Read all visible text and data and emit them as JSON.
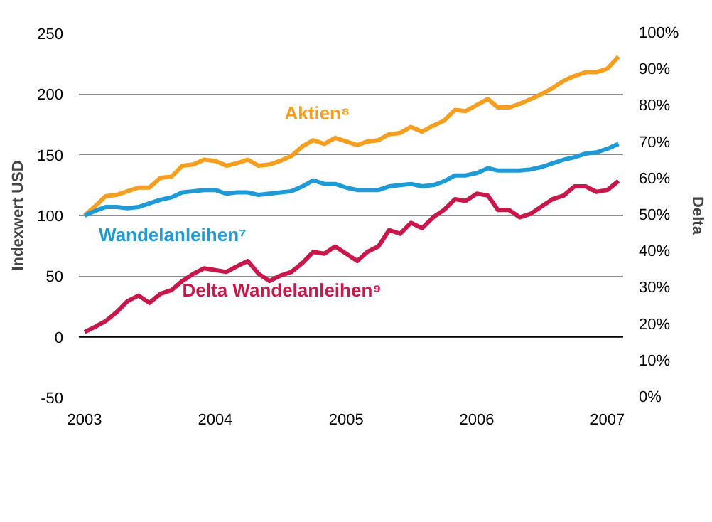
{
  "chart_data": {
    "type": "line",
    "ylabel": "Indexwert USD",
    "y2label": "Delta",
    "x": [
      "2003-01",
      "2003-02",
      "2003-03",
      "2003-04",
      "2003-05",
      "2003-06",
      "2003-07",
      "2003-08",
      "2003-09",
      "2003-10",
      "2003-11",
      "2003-12",
      "2004-01",
      "2004-02",
      "2004-03",
      "2004-04",
      "2004-05",
      "2004-06",
      "2004-07",
      "2004-08",
      "2004-09",
      "2004-10",
      "2004-11",
      "2004-12",
      "2005-01",
      "2005-02",
      "2005-03",
      "2005-04",
      "2005-05",
      "2005-06",
      "2005-07",
      "2005-08",
      "2005-09",
      "2005-10",
      "2005-11",
      "2005-12",
      "2006-01",
      "2006-02",
      "2006-03",
      "2006-04",
      "2006-05",
      "2006-06",
      "2006-07",
      "2006-08",
      "2006-09",
      "2006-10",
      "2006-11",
      "2006-12",
      "2007-01",
      "2007-02"
    ],
    "series": [
      {
        "name": "Aktien⁸",
        "color": "#f59e1f",
        "values": [
          100,
          108,
          116,
          117,
          120,
          123,
          123,
          131,
          132,
          141,
          142,
          146,
          145,
          141,
          143,
          146,
          141,
          142,
          145,
          149,
          157,
          162,
          159,
          164,
          161,
          158,
          161,
          162,
          167,
          168,
          173,
          169,
          174,
          178,
          187,
          186,
          191,
          196,
          189,
          189,
          192,
          196,
          200,
          205,
          211,
          215,
          218,
          218,
          221,
          231
        ]
      },
      {
        "name": "Wandelanleihen⁷",
        "color": "#1e9bd7",
        "values": [
          100,
          104,
          107,
          107,
          106,
          107,
          110,
          113,
          115,
          119,
          120,
          121,
          121,
          118,
          119,
          119,
          117,
          118,
          119,
          120,
          124,
          129,
          126,
          126,
          123,
          121,
          121,
          121,
          124,
          125,
          126,
          124,
          125,
          128,
          133,
          133,
          135,
          139,
          137,
          137,
          137,
          138,
          140,
          143,
          146,
          148,
          151,
          152,
          155,
          159
        ]
      },
      {
        "name": "Delta Wandelanleihen⁹",
        "color": "#c8174a",
        "axis": "y2",
        "values": [
          18,
          19.5,
          21,
          23.5,
          26.5,
          28,
          26,
          28.5,
          29.5,
          32,
          34,
          35.5,
          35,
          34.5,
          36,
          37.5,
          34,
          32,
          33.5,
          34.5,
          37,
          40,
          39.5,
          41.5,
          39.5,
          37.5,
          40,
          41.5,
          46,
          45,
          48,
          46.5,
          49.5,
          51.5,
          54.5,
          54,
          56,
          55.5,
          51.5,
          51.5,
          49.5,
          50.5,
          52.5,
          54.5,
          55.5,
          58,
          58,
          56.5,
          57,
          59.5
        ]
      }
    ],
    "xlim": [
      "2002-12-16",
      "2007-02-14"
    ],
    "xticks": [
      "2003",
      "2004",
      "2005",
      "2006",
      "2007"
    ],
    "ylim": [
      -50,
      250
    ],
    "yticks": [
      -50,
      0,
      50,
      100,
      150,
      200,
      250
    ],
    "y2lim": [
      0,
      100
    ],
    "y2ticks": [
      {
        "value": 0,
        "label": "0%"
      },
      {
        "value": 10,
        "label": "10%"
      },
      {
        "value": 20,
        "label": "20%"
      },
      {
        "value": 30,
        "label": "30%"
      },
      {
        "value": 40,
        "label": "40%"
      },
      {
        "value": 50,
        "label": "50%"
      },
      {
        "value": 60,
        "label": "60%"
      },
      {
        "value": 70,
        "label": "70%"
      },
      {
        "value": 80,
        "label": "80%"
      },
      {
        "value": 90,
        "label": "90%"
      },
      {
        "value": 100,
        "label": "100%"
      }
    ],
    "ref_lines": [
      {
        "axis": "y",
        "value": 0,
        "color": "#000000"
      }
    ],
    "grid": "y",
    "marker": "none",
    "line_style": "solid"
  }
}
